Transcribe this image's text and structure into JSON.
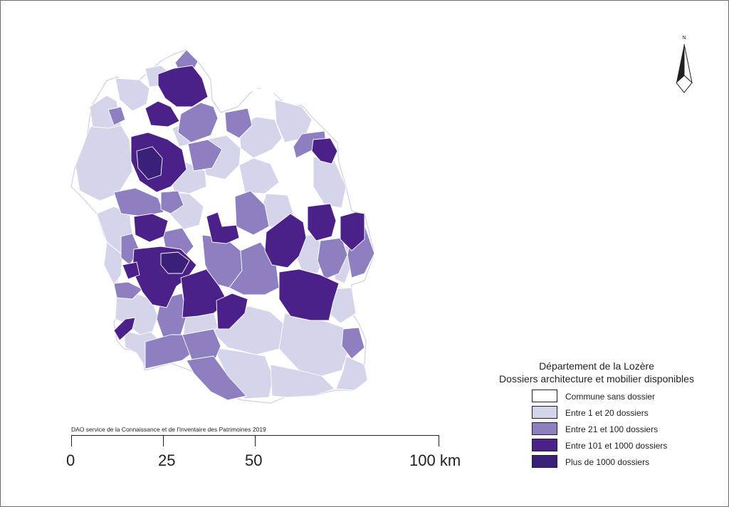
{
  "map": {
    "legend": {
      "title_line1": "Département de la Lozère",
      "title_line2": "Dossiers architecture et mobilier disponibles",
      "classes": [
        {
          "label": "Commune sans dossier",
          "color": "#ffffff"
        },
        {
          "label": "Entre 1 et 20 dossiers",
          "color": "#d4d4ea"
        },
        {
          "label": "Entre 21 et 100 dossiers",
          "color": "#8e80c0"
        },
        {
          "label": "Entre 101 et 1000 dossiers",
          "color": "#4b2088"
        },
        {
          "label": "Plus de 1000 dossiers",
          "color": "#3a2078"
        }
      ]
    },
    "north_arrow": {
      "label": "N"
    },
    "credit": "DAO service de la Connaissance et de l'Inventaire des Patrimoines 2019",
    "scale_bar": {
      "labels": [
        "0",
        "25",
        "50",
        "100 km"
      ]
    }
  }
}
